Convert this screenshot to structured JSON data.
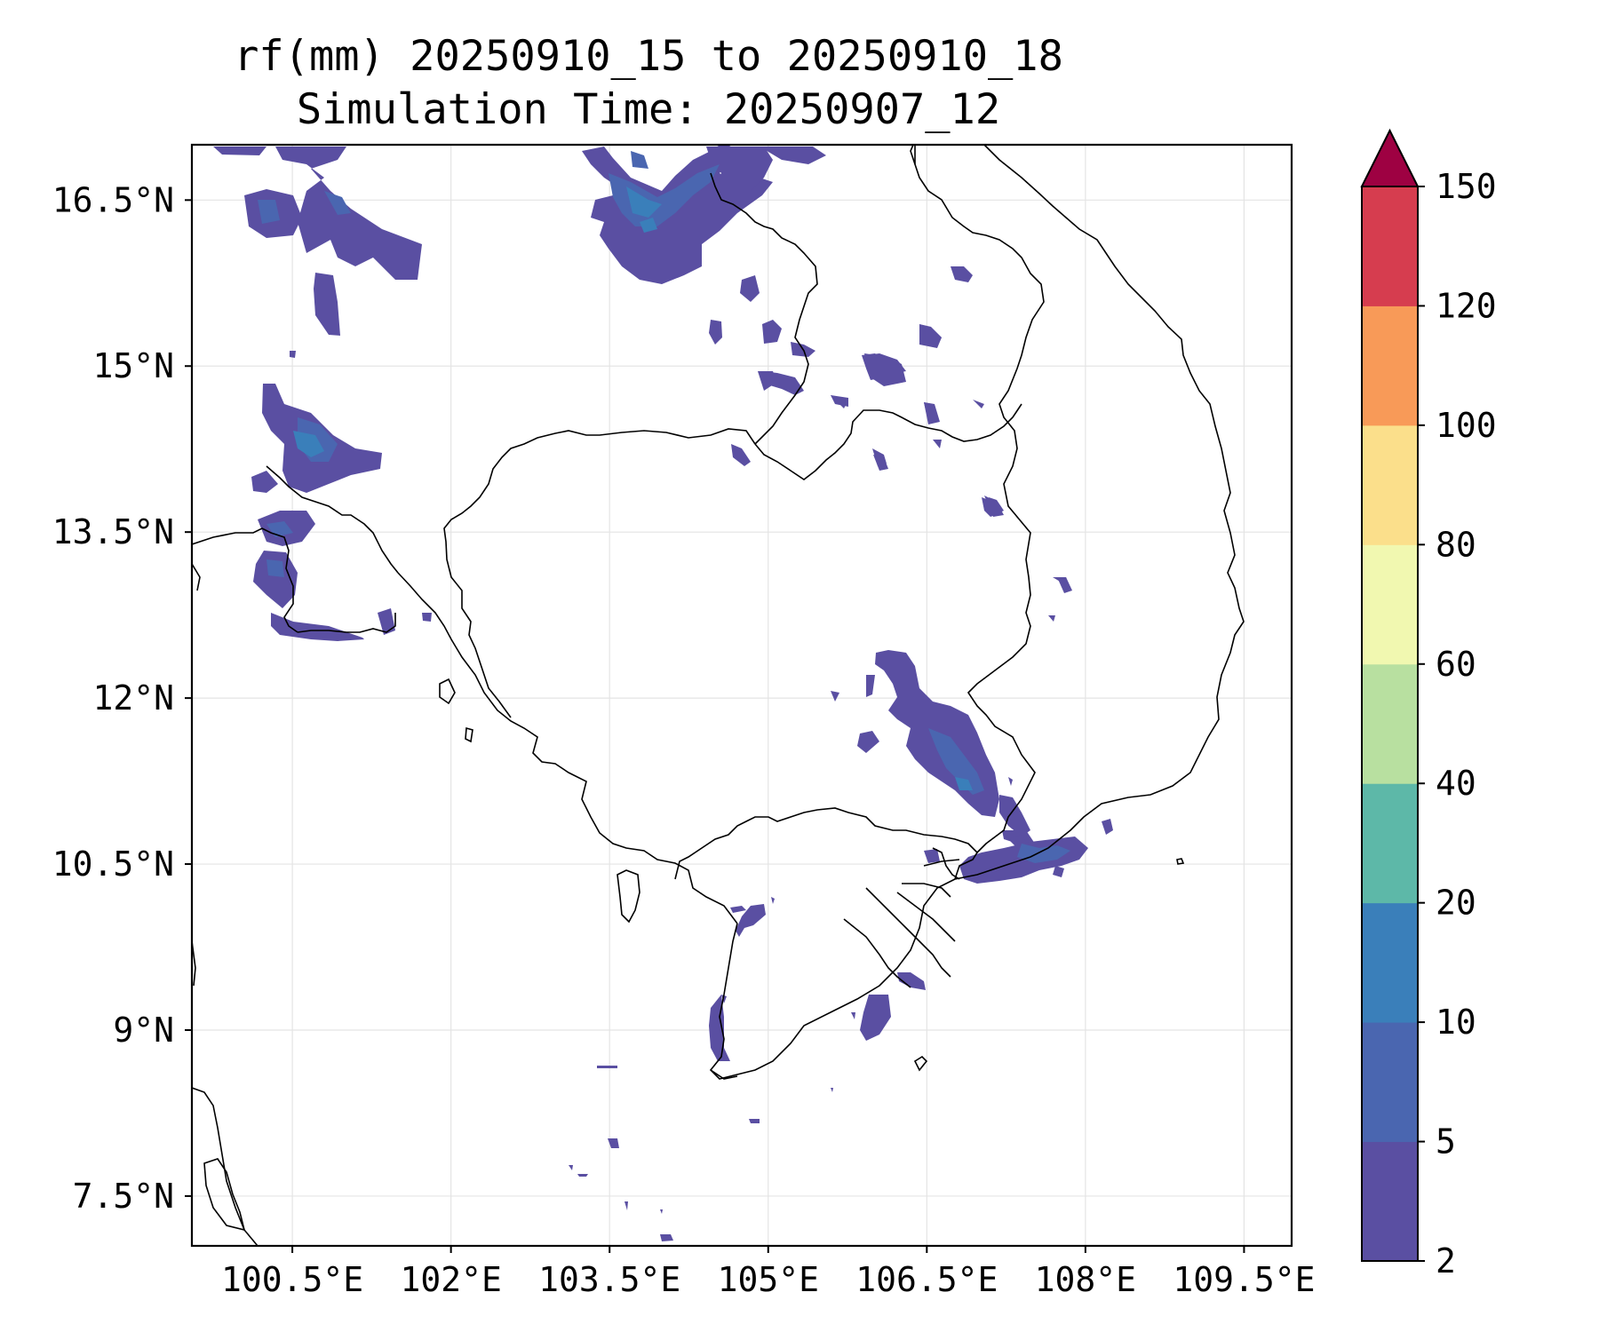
{
  "title": {
    "line1": "rf(mm) 20250910_15 to 20250910_18",
    "line2": "Simulation Time: 20250907_12"
  },
  "chart_data": {
    "type": "map-contour",
    "variable": "rf(mm)",
    "x_ticks": [
      "100.5°E",
      "102°E",
      "103.5°E",
      "105°E",
      "106.5°E",
      "108°E",
      "109.5°E"
    ],
    "x_values": [
      100.5,
      102,
      103.5,
      105,
      106.5,
      108,
      109.5
    ],
    "y_ticks": [
      "16.5°N",
      "15°N",
      "13.5°N",
      "12°N",
      "10.5°N",
      "9°N",
      "7.5°N"
    ],
    "y_values": [
      16.5,
      15,
      13.5,
      12,
      10.5,
      9,
      7.5
    ],
    "xlim": [
      99.55,
      109.95
    ],
    "ylim": [
      7.05,
      17.0
    ],
    "grid": true,
    "colorbar": {
      "levels": [
        2,
        5,
        10,
        20,
        40,
        60,
        80,
        100,
        120,
        150
      ],
      "tick_labels": [
        "2",
        "5",
        "10",
        "20",
        "40",
        "60",
        "80",
        "100",
        "120",
        "150"
      ],
      "colors": [
        "#5a4fa2",
        "#4a66b0",
        "#3a7fba",
        "#5db8a8",
        "#b8e0a0",
        "#f1f8b0",
        "#fbdf8b",
        "#f89a58",
        "#d63d4f"
      ],
      "extend_color": "#9e0142",
      "extend": "max"
    }
  }
}
